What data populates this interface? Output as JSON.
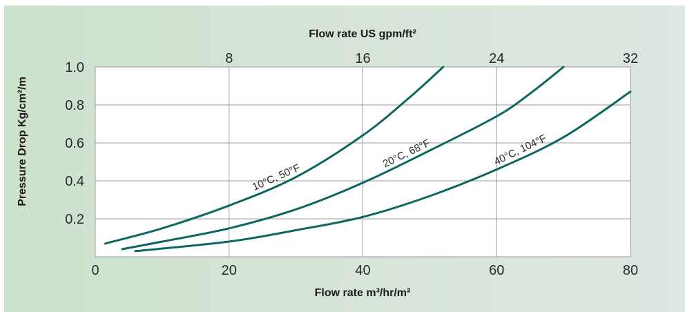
{
  "chart_data": {
    "type": "line",
    "top_axis_title": "Flow rate US gpm/ft²",
    "xlabel": "Flow rate m³/hr/m²",
    "ylabel": "Pressure Drop Kg/cm²/m",
    "xlim": [
      0,
      80
    ],
    "ylim": [
      0,
      1.0
    ],
    "top_xlim": [
      0,
      32
    ],
    "grid": true,
    "x_ticks": [
      {
        "value": 0,
        "label": "0"
      },
      {
        "value": 20,
        "label": "20"
      },
      {
        "value": 40,
        "label": "40"
      },
      {
        "value": 60,
        "label": "60"
      },
      {
        "value": 80,
        "label": "80"
      }
    ],
    "top_x_ticks": [
      {
        "value": 8,
        "label": "8"
      },
      {
        "value": 16,
        "label": "16"
      },
      {
        "value": 24,
        "label": "24"
      },
      {
        "value": 32,
        "label": "32"
      }
    ],
    "y_ticks": [
      {
        "value": 0.2,
        "label": "0.2"
      },
      {
        "value": 0.4,
        "label": "0.4"
      },
      {
        "value": 0.6,
        "label": "0.6"
      },
      {
        "value": 0.8,
        "label": "0.8"
      },
      {
        "value": 1.0,
        "label": "1.0"
      }
    ],
    "series": [
      {
        "name": "10°C, 50°F",
        "color": "#0d6660",
        "x": [
          1.5,
          10,
          20,
          30,
          40,
          47,
          52
        ],
        "y": [
          0.07,
          0.15,
          0.27,
          0.42,
          0.64,
          0.84,
          1.0
        ]
      },
      {
        "name": "20°C, 68°F",
        "color": "#0d6660",
        "x": [
          4,
          10,
          20,
          30,
          40,
          50,
          60,
          65,
          70
        ],
        "y": [
          0.04,
          0.08,
          0.15,
          0.25,
          0.39,
          0.56,
          0.74,
          0.86,
          1.0
        ]
      },
      {
        "name": "40°C, 104°F",
        "color": "#0d6660",
        "x": [
          6,
          20,
          30,
          40,
          50,
          60,
          70,
          80
        ],
        "y": [
          0.03,
          0.08,
          0.14,
          0.21,
          0.32,
          0.46,
          0.63,
          0.87
        ]
      }
    ]
  }
}
